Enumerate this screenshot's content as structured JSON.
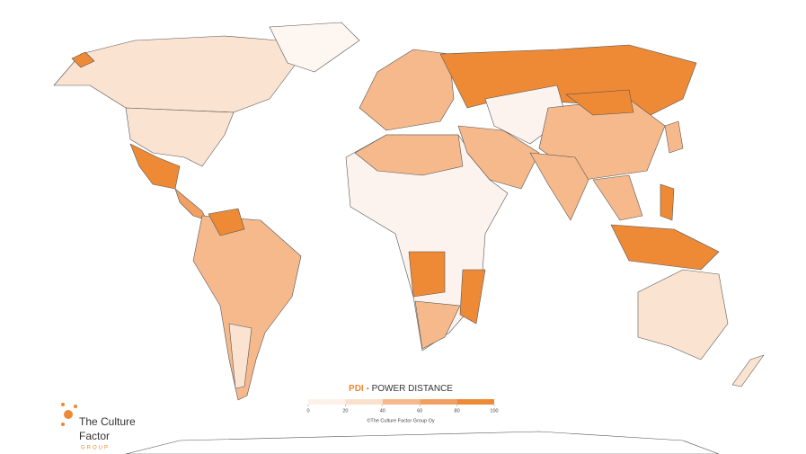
{
  "legend": {
    "abbr": "PDI",
    "title": " - POWER DISTANCE",
    "ticks": [
      0,
      20,
      40,
      60,
      80,
      100
    ],
    "colors": [
      "#fdf1ea",
      "#fbe1cd",
      "#f5b98c",
      "#f2a062",
      "#ee8a36"
    ],
    "copyright": "©The Culture Factor Group Oy"
  },
  "logo": {
    "line1": "The Culture",
    "line2": "Factor",
    "line3": "GROUP"
  }
}
